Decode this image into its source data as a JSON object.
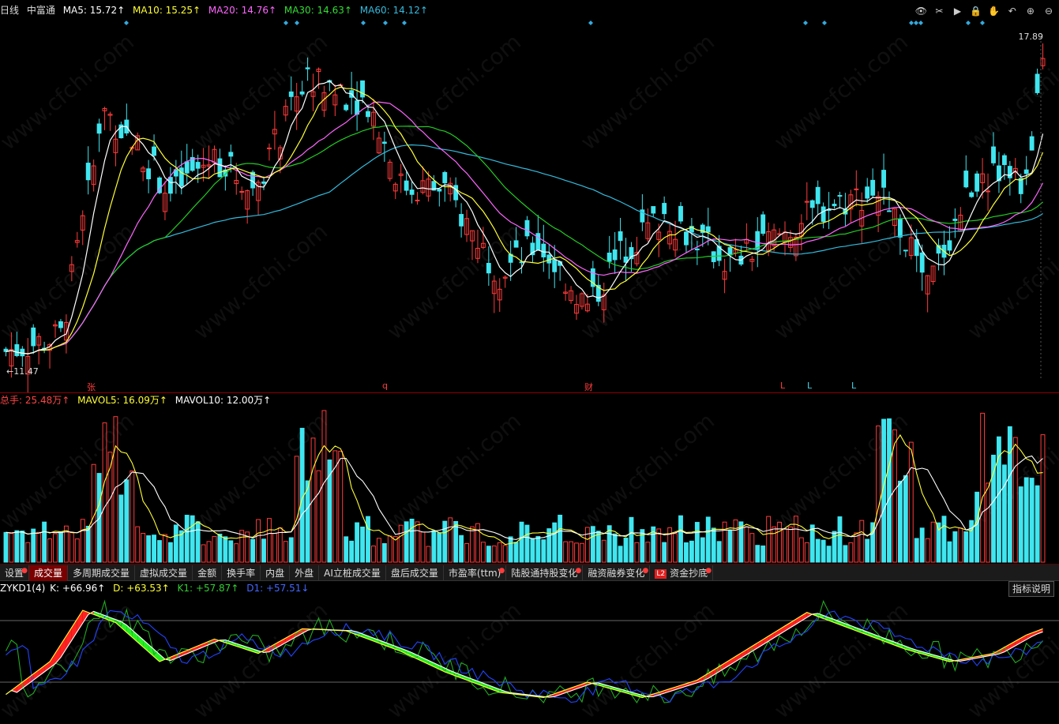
{
  "header": {
    "period": "日线",
    "stock_name": "中富通",
    "ma5": "MA5: 15.72↑",
    "ma10": "MA10: 15.25↑",
    "ma20": "MA20: 14.76↑",
    "ma30": "MA30: 14.63↑",
    "ma60": "MA60: 14.12↑"
  },
  "price_panel": {
    "high_label": "17.89",
    "low_label": "←11.47",
    "event_markers": [
      "张",
      "q",
      "财",
      "L",
      "L",
      "L"
    ]
  },
  "volume_panel": {
    "total": "总手: 25.48万↑",
    "mavol5": "MAVOL5: 16.09万↑",
    "mavol10": "MAVOL10: 12.00万↑"
  },
  "tabs": [
    {
      "label": "设置",
      "dot": "●"
    },
    {
      "label": "成交量",
      "dot": ""
    },
    {
      "label": "多周期成交量",
      "dot": ""
    },
    {
      "label": "虚拟成交量",
      "dot": ""
    },
    {
      "label": "金额",
      "dot": ""
    },
    {
      "label": "换手率",
      "dot": ""
    },
    {
      "label": "内盘",
      "dot": ""
    },
    {
      "label": "外盘",
      "dot": ""
    },
    {
      "label": "AI立桩成交量",
      "dot": ""
    },
    {
      "label": "盘后成交量",
      "dot": ""
    },
    {
      "label": "市盈率(ttm)",
      "dot": "●"
    },
    {
      "label": "陆股通持股变化",
      "dot": "●"
    },
    {
      "label": "融资融券变化",
      "dot": "●"
    },
    {
      "label": "资金抄底",
      "dot": "●",
      "badge": "L2"
    }
  ],
  "indicator_panel": {
    "name": "ZYKD1(4)",
    "k": "K: +66.96↑",
    "d": "D: +63.53↑",
    "k1": "K1: +57.87↑",
    "d1": "D1: +57.51↓",
    "help_label": "指标说明"
  },
  "watermark": "www.cfchi.com",
  "colors": {
    "up": "#ff3b3b",
    "down": "#3fe6f0",
    "ma5": "#ffffff",
    "ma10": "#ffff33",
    "ma20": "#ff66ff",
    "ma30": "#22cc22",
    "ma60": "#33bbdd",
    "k_line": "#ffff33",
    "d_line": "#ffffff",
    "k1_line": "#22aa22",
    "d1_line": "#2244ff"
  }
}
